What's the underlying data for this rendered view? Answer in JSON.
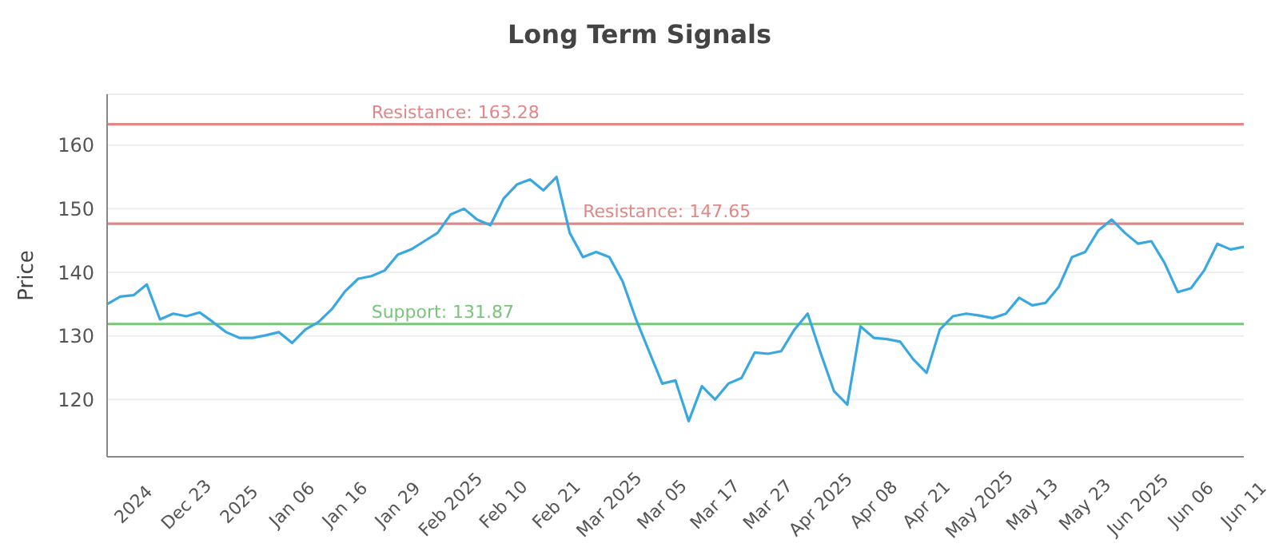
{
  "chart_data": {
    "type": "line",
    "title": "Long Term Signals",
    "ylabel": "Price",
    "categories": [
      null,
      null,
      "2024",
      null,
      null,
      null,
      "Dec 23",
      null,
      null,
      null,
      "2025",
      null,
      null,
      null,
      "Jan 06",
      null,
      null,
      null,
      "Jan 16",
      null,
      null,
      null,
      "Jan 29",
      null,
      null,
      null,
      "Feb 2025",
      null,
      null,
      null,
      "Feb 10",
      null,
      null,
      null,
      "Feb 21",
      null,
      null,
      null,
      "Mar 2025",
      null,
      null,
      null,
      "Mar 05",
      null,
      null,
      null,
      "Mar 17",
      null,
      null,
      null,
      "Mar 27",
      null,
      null,
      null,
      "Apr 2025",
      null,
      null,
      null,
      "Apr 08",
      null,
      null,
      null,
      "Apr 21",
      null,
      null,
      null,
      "May 2025",
      null,
      null,
      null,
      "May 13",
      null,
      null,
      null,
      "May 23",
      null,
      null,
      null,
      "Jun 2025",
      null,
      null,
      null,
      "Jun 06",
      null,
      null,
      null,
      "Jun 11"
    ],
    "series": [
      {
        "color": "#3aa8e0",
        "values": [
          135,
          136.2,
          136.4,
          138.1,
          132.6,
          133.5,
          133.1,
          133.7,
          132.2,
          130.6,
          129.7,
          129.7,
          130.1,
          130.6,
          128.9,
          131,
          132.2,
          134.2,
          137,
          139,
          139.4,
          140.3,
          142.8,
          143.6,
          144.9,
          146.2,
          149.1,
          150,
          148.3,
          147.4,
          151.6,
          153.8,
          154.6,
          152.9,
          155,
          146.2,
          142.4,
          143.2,
          142.4,
          138.6,
          132.7,
          127.6,
          122.5,
          123,
          116.6,
          122.1,
          120,
          122.5,
          123.4,
          127.4,
          127.2,
          127.6,
          131,
          133.5,
          127.2,
          121.3,
          119.2,
          131.5,
          129.7,
          129.5,
          129.1,
          126.3,
          124.2,
          131,
          133.1,
          133.5,
          133.2,
          132.8,
          133.5,
          136,
          134.8,
          135.2,
          137.7,
          142.4,
          143.2,
          146.6,
          148.3,
          146.2,
          144.5,
          144.9,
          141.5,
          136.9,
          137.5,
          140.3,
          144.5,
          143.6,
          144
        ]
      }
    ],
    "ylim": [
      111,
      168
    ],
    "yticks": [
      120,
      130,
      140,
      150,
      160
    ],
    "grid": "y",
    "legend": false,
    "marker": "none",
    "line_style": "solid",
    "ref_lines": [
      {
        "axis": "y",
        "value": 163.28,
        "label": "Resistance: 163.28",
        "color": "#e08888"
      },
      {
        "axis": "y",
        "value": 147.65,
        "label": "Resistance: 147.65",
        "color": "#e08888"
      },
      {
        "axis": "y",
        "value": 131.87,
        "label": "Support: 131.87",
        "color": "#7cc47c"
      }
    ]
  }
}
